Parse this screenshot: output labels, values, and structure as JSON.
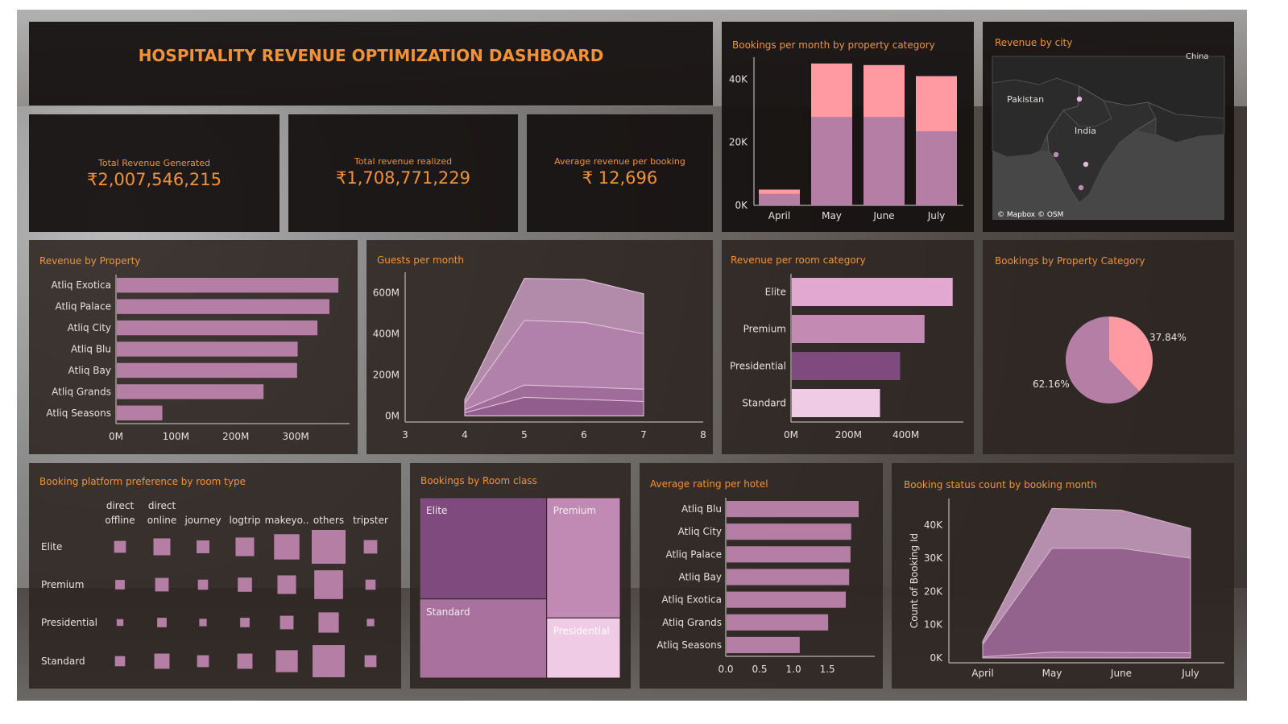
{
  "header": {
    "title": "HOSPITALITY REVENUE OPTIMIZATION DASHBOARD"
  },
  "kpis": [
    {
      "label": "Total Revenue Generated",
      "value": "₹2,007,546,215"
    },
    {
      "label": "Total revenue realized",
      "value": "₹1,708,771,229"
    },
    {
      "label": "Average revenue per booking",
      "value": "₹ 12,696"
    }
  ],
  "colors": {
    "accent": "#f0923a",
    "pink": "#ff9aa2",
    "mauve": "#b57ea5",
    "light_mauve": "#e6b2d6",
    "dark_mauve": "#7a4a78",
    "pale_pink": "#f0cbe6"
  },
  "map": {
    "title": "Revenue by city",
    "labels": [
      "Pakistan",
      "India",
      "China"
    ],
    "attribution": "© Mapbox © OSM"
  },
  "chart_data": [
    {
      "id": "bookings_month",
      "type": "bar",
      "title": "Bookings per month by property category",
      "categories": [
        "April",
        "May",
        "June",
        "July"
      ],
      "series": [
        {
          "values": [
            3600,
            28000,
            28000,
            23500
          ],
          "color": "#b57ea5"
        },
        {
          "values": [
            1400,
            17000,
            16500,
            17500
          ],
          "color": "#ff9aa2"
        }
      ],
      "yticks": [
        {
          "v": 0,
          "label": "0K"
        },
        {
          "v": 20000,
          "label": "20K"
        },
        {
          "v": 40000,
          "label": "40K"
        }
      ],
      "ylim": [
        0,
        47000
      ]
    },
    {
      "id": "revenue_property",
      "type": "bar",
      "orientation": "horizontal",
      "title": "Revenue by Property",
      "categories": [
        "Atliq Exotica",
        "Atliq Palace",
        "Atliq City",
        "Atliq Blu",
        "Atliq Bay",
        "Atliq Grands",
        "Atliq Seasons"
      ],
      "values": [
        370,
        355,
        335,
        302,
        301,
        245,
        76
      ],
      "xticks": [
        {
          "v": 0,
          "label": "0M"
        },
        {
          "v": 100,
          "label": "100M"
        },
        {
          "v": 200,
          "label": "200M"
        },
        {
          "v": 300,
          "label": "300M"
        }
      ],
      "xlim": [
        0,
        390
      ]
    },
    {
      "id": "guests_month",
      "type": "area",
      "title": "Guests per month",
      "x": [
        4,
        5,
        6,
        7
      ],
      "series": [
        {
          "values": [
            15,
            90,
            80,
            70
          ]
        },
        {
          "values": [
            30,
            150,
            140,
            130
          ]
        },
        {
          "values": [
            60,
            465,
            455,
            400
          ]
        },
        {
          "values": [
            80,
            670,
            665,
            595
          ]
        }
      ],
      "xticks": [
        3,
        4,
        5,
        6,
        7,
        8
      ],
      "yticks": [
        {
          "v": 0,
          "label": "0M"
        },
        {
          "v": 200,
          "label": "200M"
        },
        {
          "v": 400,
          "label": "400M"
        },
        {
          "v": 600,
          "label": "600M"
        }
      ],
      "xlim": [
        3,
        8
      ],
      "ylim": [
        -30,
        700
      ]
    },
    {
      "id": "revenue_room",
      "type": "bar",
      "orientation": "horizontal",
      "title": "Revenue per room category",
      "categories": [
        "Elite",
        "Premium",
        "Presidential",
        "Standard"
      ],
      "values": [
        560,
        462,
        377,
        307
      ],
      "colors": [
        "#e2a8d2",
        "#c38ab3",
        "#7f4b7e",
        "#f0cbe6"
      ],
      "xticks": [
        {
          "v": 0,
          "label": "0M"
        },
        {
          "v": 200,
          "label": "200M"
        },
        {
          "v": 400,
          "label": "400M"
        }
      ],
      "xlim": [
        0,
        600
      ]
    },
    {
      "id": "pie_category",
      "type": "pie",
      "title": "Bookings by Property Category",
      "slices": [
        {
          "value": 37.84,
          "label": "37.84%",
          "color": "#ff9aa2"
        },
        {
          "value": 62.16,
          "label": "62.16%",
          "color": "#b57ea5"
        }
      ]
    },
    {
      "id": "platform_pref",
      "type": "heatmap",
      "title": "Booking platform preference by room type",
      "columns": [
        "direct offline",
        "direct online",
        "journey",
        "logtrip",
        "makeyo..",
        "others",
        "tripster"
      ],
      "rows": [
        "Elite",
        "Premium",
        "Presidential",
        "Standard"
      ],
      "values": [
        [
          0.35,
          0.5,
          0.38,
          0.55,
          0.75,
          1.0,
          0.4
        ],
        [
          0.28,
          0.4,
          0.3,
          0.42,
          0.55,
          0.85,
          0.3
        ],
        [
          0.2,
          0.28,
          0.22,
          0.28,
          0.4,
          0.6,
          0.22
        ],
        [
          0.3,
          0.45,
          0.35,
          0.45,
          0.65,
          0.95,
          0.35
        ]
      ]
    },
    {
      "id": "room_class",
      "type": "treemap",
      "title": "Bookings by Room class",
      "tiles": [
        {
          "label": "Elite",
          "value": 32,
          "color": "#7f4b7e"
        },
        {
          "label": "Standard",
          "value": 25,
          "color": "#a8719e"
        },
        {
          "label": "Premium",
          "value": 22,
          "color": "#c08ab4"
        },
        {
          "label": "Presidential",
          "value": 11,
          "color": "#f0cbe6"
        }
      ]
    },
    {
      "id": "rating_hotel",
      "type": "bar",
      "orientation": "horizontal",
      "title": "Average rating per hotel",
      "categories": [
        "Atliq Blu",
        "Atliq City",
        "Atliq Palace",
        "Atliq Bay",
        "Atliq Exotica",
        "Atliq Grands",
        "Atliq Seasons"
      ],
      "values": [
        1.95,
        1.84,
        1.83,
        1.81,
        1.76,
        1.5,
        1.08
      ],
      "xticks": [
        {
          "v": 0,
          "label": "0.0"
        },
        {
          "v": 0.5,
          "label": "0.5"
        },
        {
          "v": 1.0,
          "label": "1.0"
        },
        {
          "v": 1.5,
          "label": "1.5"
        }
      ],
      "xlim": [
        0,
        2.2
      ]
    },
    {
      "id": "booking_status",
      "type": "area",
      "title": "Booking status count by booking month",
      "ylabel": "Count of Booking Id",
      "categories": [
        "April",
        "May",
        "June",
        "July"
      ],
      "series": [
        {
          "values": [
            300,
            1700,
            1600,
            1500
          ]
        },
        {
          "values": [
            4000,
            33000,
            33000,
            30000
          ]
        },
        {
          "values": [
            5000,
            45000,
            44500,
            39000
          ]
        }
      ],
      "yticks": [
        {
          "v": 0,
          "label": "0K"
        },
        {
          "v": 10000,
          "label": "10K"
        },
        {
          "v": 20000,
          "label": "20K"
        },
        {
          "v": 30000,
          "label": "30K"
        },
        {
          "v": 40000,
          "label": "40K"
        }
      ],
      "ylim": [
        -1500,
        48000
      ]
    }
  ]
}
